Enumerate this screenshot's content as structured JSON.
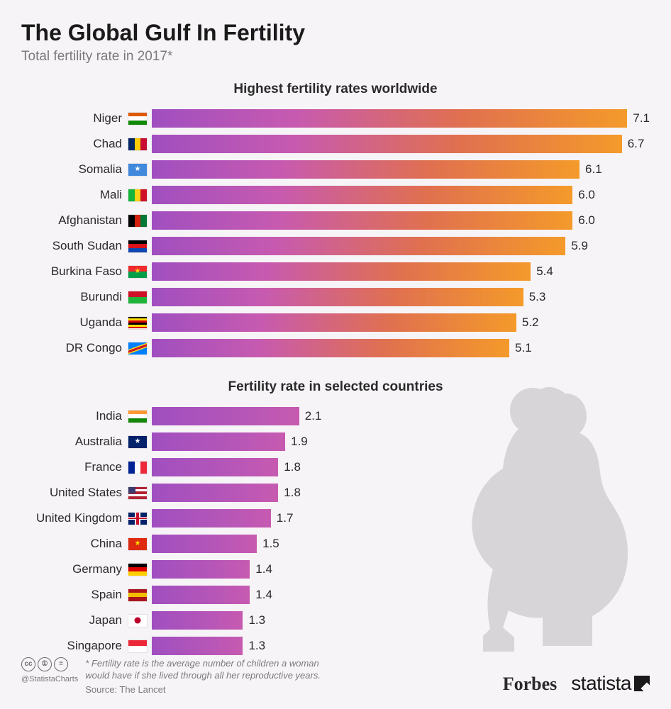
{
  "title": "The Global Gulf In Fertility",
  "subtitle": "Total fertility rate in 2017*",
  "section1": {
    "title": "Highest fertility rates worldwide",
    "max_value": 7.1,
    "bar_gradient": "linear-gradient(90deg, #a04fc0 0%, #c75ab0 30%, #e07050 65%, #f49a2a 100%)",
    "rows": [
      {
        "label": "Niger",
        "value": "7.1",
        "width_pct": 100.0,
        "flag": [
          "#e05a00",
          "#ffffff",
          "#128807"
        ],
        "flag_dir": "h"
      },
      {
        "label": "Chad",
        "value": "6.7",
        "width_pct": 94.4,
        "flag": [
          "#002664",
          "#fecb00",
          "#c60c30"
        ],
        "flag_dir": "v"
      },
      {
        "label": "Somalia",
        "value": "6.1",
        "width_pct": 85.9,
        "flag": [
          "#4189dd"
        ],
        "flag_dir": "v",
        "star": "#ffffff"
      },
      {
        "label": "Mali",
        "value": "6.0",
        "width_pct": 84.5,
        "flag": [
          "#14b53a",
          "#fcd116",
          "#ce1126"
        ],
        "flag_dir": "v"
      },
      {
        "label": "Afghanistan",
        "value": "6.0",
        "width_pct": 84.5,
        "flag": [
          "#000000",
          "#d32011",
          "#007a36"
        ],
        "flag_dir": "v"
      },
      {
        "label": "South Sudan",
        "value": "5.9",
        "width_pct": 83.1,
        "flag": [
          "#000000",
          "#da121a",
          "#0f47af"
        ],
        "flag_dir": "h"
      },
      {
        "label": "Burkina Faso",
        "value": "5.4",
        "width_pct": 76.1,
        "flag": [
          "#ef2b2d",
          "#009e49"
        ],
        "flag_dir": "h",
        "star": "#fcd116"
      },
      {
        "label": "Burundi",
        "value": "5.3",
        "width_pct": 74.6,
        "flag": [
          "#ce1126",
          "#1eb53a"
        ],
        "flag_dir": "h"
      },
      {
        "label": "Uganda",
        "value": "5.2",
        "width_pct": 73.2,
        "flag": [
          "#000000",
          "#fcdc04",
          "#d90000",
          "#000000",
          "#fcdc04",
          "#d90000"
        ],
        "flag_dir": "h"
      },
      {
        "label": "DR Congo",
        "value": "5.1",
        "width_pct": 71.8,
        "flag": [
          "#007fff"
        ],
        "flag_dir": "v",
        "diag": "#ce1126"
      }
    ]
  },
  "section2": {
    "title": "Fertility rate in selected countries",
    "max_value": 7.1,
    "bar_gradient": "linear-gradient(90deg, #a04fc0 0%, #b556b8 60%, #c75ab0 100%)",
    "rows": [
      {
        "label": "India",
        "value": "2.1",
        "width_pct": 29.6,
        "flag": [
          "#ff9933",
          "#ffffff",
          "#138808"
        ],
        "flag_dir": "h"
      },
      {
        "label": "Australia",
        "value": "1.9",
        "width_pct": 26.8,
        "flag": [
          "#012169"
        ],
        "flag_dir": "v",
        "star": "#ffffff"
      },
      {
        "label": "France",
        "value": "1.8",
        "width_pct": 25.4,
        "flag": [
          "#002395",
          "#ffffff",
          "#ed2939"
        ],
        "flag_dir": "v"
      },
      {
        "label": "United States",
        "value": "1.8",
        "width_pct": 25.4,
        "flag": [
          "#b22234",
          "#ffffff",
          "#b22234",
          "#ffffff",
          "#b22234"
        ],
        "flag_dir": "h",
        "canton": "#3c3b6e"
      },
      {
        "label": "United Kingdom",
        "value": "1.7",
        "width_pct": 23.9,
        "flag": [
          "#012169"
        ],
        "flag_dir": "v",
        "cross": true
      },
      {
        "label": "China",
        "value": "1.5",
        "width_pct": 21.1,
        "flag": [
          "#de2910"
        ],
        "flag_dir": "v",
        "star": "#ffde00"
      },
      {
        "label": "Germany",
        "value": "1.4",
        "width_pct": 19.7,
        "flag": [
          "#000000",
          "#dd0000",
          "#ffce00"
        ],
        "flag_dir": "h"
      },
      {
        "label": "Spain",
        "value": "1.4",
        "width_pct": 19.7,
        "flag": [
          "#aa151b",
          "#f1bf00",
          "#aa151b"
        ],
        "flag_dir": "h"
      },
      {
        "label": "Japan",
        "value": "1.3",
        "width_pct": 18.3,
        "flag": [
          "#ffffff"
        ],
        "flag_dir": "v",
        "dot": "#bc002d"
      },
      {
        "label": "Singapore",
        "value": "1.3",
        "width_pct": 18.3,
        "flag": [
          "#ed2939",
          "#ffffff"
        ],
        "flag_dir": "h"
      }
    ]
  },
  "footnote": "* Fertility rate is the average number of children a woman would have if she lived through all her reproductive years.",
  "source": "Source: The Lancet",
  "cc_handle": "@StatistaCharts",
  "brand1": "Forbes",
  "brand2": "statista",
  "silhouette_color": "#d8d5d8",
  "background_color": "#f7f4f7"
}
